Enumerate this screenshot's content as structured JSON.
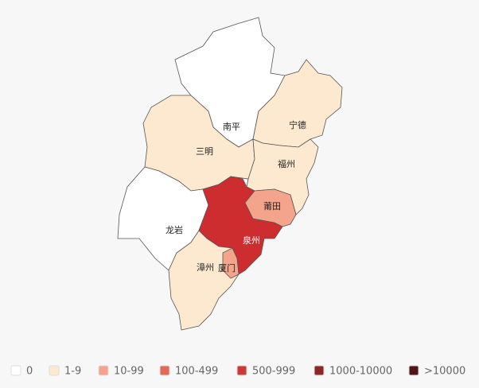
{
  "regions": [
    {
      "name": "南平",
      "color": "#ffffff"
    },
    {
      "name": "宁德",
      "color": "#fde9cf"
    },
    {
      "name": "三明",
      "color": "#fde9cf"
    },
    {
      "name": "福州",
      "color": "#fde9cf"
    },
    {
      "name": "龙岩",
      "color": "#ffffff"
    },
    {
      "name": "泉州",
      "color": "#ce2d30"
    },
    {
      "name": "莆田",
      "color": "#f3a48a"
    },
    {
      "name": "漳州",
      "color": "#fde9cf"
    },
    {
      "name": "厦门",
      "color": "#f3a48a"
    }
  ],
  "legend": [
    {
      "label": "0",
      "color": "#ffffff"
    },
    {
      "label": "1-9",
      "color": "#fde9cf"
    },
    {
      "label": "10-99",
      "color": "#f3a48a"
    },
    {
      "label": "100-499",
      "color": "#e06a55"
    },
    {
      "label": "500-999",
      "color": "#cd3a36"
    },
    {
      "label": "1000-10000",
      "color": "#8c2727"
    },
    {
      "label": ">10000",
      "color": "#4f1414"
    }
  ]
}
